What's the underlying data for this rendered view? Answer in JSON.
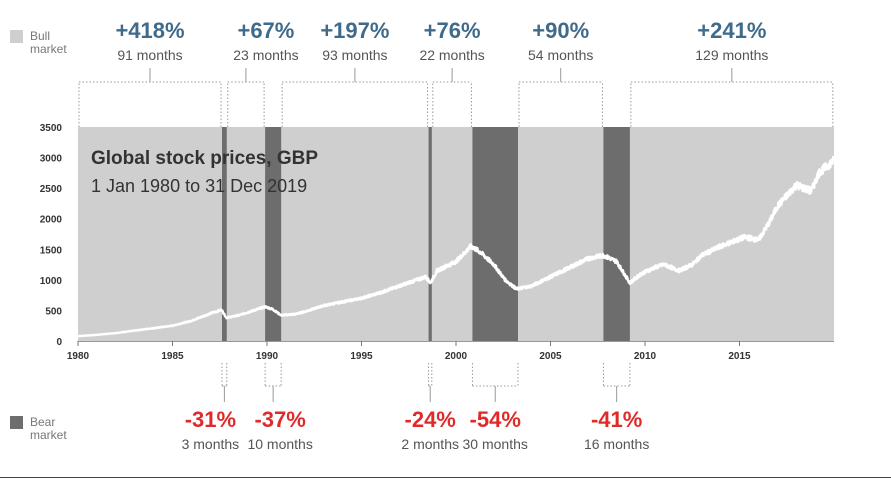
{
  "legend": {
    "bull_line1": "Bull",
    "bull_line2": "market",
    "bear_line1": "Bear",
    "bear_line2": "market"
  },
  "colors": {
    "bull_bg": "#cfcfcf",
    "bear_band": "#6d6d6d",
    "line": "#ffffff",
    "bull_text": "#3f6a8a",
    "bear_text": "#e02a2a"
  },
  "chart_data": {
    "type": "line",
    "title": "Global stock prices, GBP",
    "subtitle": "1 Jan 1980 to 31 Dec 2019",
    "xlim": [
      1980,
      2020
    ],
    "ylim": [
      0,
      3500
    ],
    "x_ticks": [
      1980,
      1985,
      1990,
      1995,
      2000,
      2005,
      2010,
      2015
    ],
    "x_tick_labels": [
      "1980",
      "1985",
      "1990",
      "1995",
      "2000",
      "2005",
      "2010",
      "2015"
    ],
    "y_ticks": [
      0,
      500,
      1000,
      1500,
      2000,
      2500,
      3000,
      3500
    ],
    "y_tick_labels": [
      "0",
      "500",
      "1000",
      "1500",
      "2000",
      "2500",
      "3000",
      "3500"
    ],
    "series": [
      {
        "name": "Global stock prices",
        "x": [
          1980,
          1981,
          1982,
          1983,
          1984,
          1985,
          1986,
          1987.0,
          1987.6,
          1987.85,
          1988.5,
          1989,
          1989.9,
          1990.3,
          1990.75,
          1991.5,
          1992,
          1993,
          1994,
          1995,
          1996,
          1997,
          1998.4,
          1998.65,
          1999,
          2000,
          2000.8,
          2001.3,
          2002,
          2002.6,
          2003.2,
          2004,
          2005,
          2006,
          2007,
          2007.8,
          2008.5,
          2009.2,
          2009.8,
          2010.5,
          2011,
          2011.8,
          2012.5,
          2013,
          2014,
          2015.3,
          2016,
          2016.6,
          2017,
          2018,
          2018.8,
          2019.2,
          2019.99
        ],
        "y": [
          80,
          100,
          130,
          170,
          210,
          250,
          330,
          450,
          510,
          380,
          420,
          470,
          560,
          520,
          420,
          440,
          480,
          580,
          640,
          700,
          790,
          900,
          1050,
          950,
          1150,
          1300,
          1550,
          1450,
          1250,
          1000,
          850,
          900,
          1050,
          1200,
          1350,
          1400,
          1300,
          950,
          1100,
          1200,
          1250,
          1150,
          1250,
          1400,
          1550,
          1700,
          1650,
          1950,
          2200,
          2550,
          2450,
          2750,
          2950
        ]
      }
    ],
    "bull_markets": [
      {
        "start": 1980.0,
        "end": 1987.62,
        "return": "+418%",
        "duration": "91 months"
      },
      {
        "start": 1987.87,
        "end": 1989.9,
        "return": "+67%",
        "duration": "23 months"
      },
      {
        "start": 1990.75,
        "end": 1998.55,
        "return": "+197%",
        "duration": "93 months"
      },
      {
        "start": 1998.72,
        "end": 2000.87,
        "return": "+76%",
        "duration": "22 months"
      },
      {
        "start": 2003.28,
        "end": 2007.8,
        "return": "+90%",
        "duration": "54 months"
      },
      {
        "start": 2009.2,
        "end": 2019.99,
        "return": "+241%",
        "duration": "129 months"
      }
    ],
    "bear_markets": [
      {
        "start": 1987.62,
        "end": 1987.87,
        "return": "-31%",
        "duration": "3 months"
      },
      {
        "start": 1989.9,
        "end": 1990.75,
        "return": "-37%",
        "duration": "10 months"
      },
      {
        "start": 1998.55,
        "end": 1998.72,
        "return": "-24%",
        "duration": "2 months"
      },
      {
        "start": 2000.87,
        "end": 2003.28,
        "return": "-54%",
        "duration": "30 months"
      },
      {
        "start": 2007.8,
        "end": 2009.2,
        "return": "-41%",
        "duration": "16 months"
      }
    ]
  }
}
